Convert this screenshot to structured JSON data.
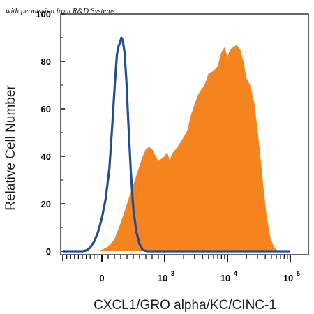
{
  "credit": "with permission from R&D Systems",
  "chart_data": {
    "type": "area",
    "title": "",
    "xlabel": "CXCL1/GRO alpha/KC/CINC-1",
    "ylabel": "Relative Cell Number",
    "x_scale": "biexponential",
    "xlim": [
      -1000,
      100000
    ],
    "ylim": [
      0,
      100
    ],
    "grid": false,
    "legend": "none",
    "y_ticks": [
      "0",
      "20",
      "40",
      "60",
      "80",
      "100"
    ],
    "x_ticks": [
      {
        "label": "0",
        "value": 0
      },
      {
        "label": "10",
        "sup": "3",
        "value": 1000
      },
      {
        "label": "10",
        "sup": "4",
        "value": 10000
      },
      {
        "label": "10",
        "sup": "5",
        "value": 100000
      }
    ],
    "series": [
      {
        "style": "filled",
        "color": "#F5841F",
        "points": [
          [
            -1000,
            0
          ],
          [
            -300,
            0
          ],
          [
            0,
            0.5
          ],
          [
            100,
            2
          ],
          [
            200,
            5
          ],
          [
            300,
            12
          ],
          [
            400,
            20
          ],
          [
            500,
            28
          ],
          [
            600,
            36
          ],
          [
            650,
            40
          ],
          [
            700,
            43
          ],
          [
            750,
            44
          ],
          [
            800,
            43
          ],
          [
            900,
            38
          ],
          [
            1000,
            40
          ],
          [
            1100,
            42
          ],
          [
            1200,
            38
          ],
          [
            1300,
            41
          ],
          [
            1500,
            43
          ],
          [
            1700,
            45
          ],
          [
            2000,
            48
          ],
          [
            2300,
            51
          ],
          [
            2600,
            57
          ],
          [
            3000,
            62
          ],
          [
            3400,
            66
          ],
          [
            3800,
            68
          ],
          [
            4300,
            70
          ],
          [
            5000,
            75
          ],
          [
            6000,
            76
          ],
          [
            7000,
            78
          ],
          [
            8000,
            84
          ],
          [
            9000,
            86
          ],
          [
            10000,
            82
          ],
          [
            11000,
            85
          ],
          [
            12500,
            86
          ],
          [
            14000,
            87
          ],
          [
            16000,
            85
          ],
          [
            18000,
            80
          ],
          [
            20000,
            73
          ],
          [
            23000,
            70
          ],
          [
            27000,
            62
          ],
          [
            32000,
            45
          ],
          [
            37000,
            28
          ],
          [
            42000,
            15
          ],
          [
            48000,
            6
          ],
          [
            55000,
            1.5
          ],
          [
            65000,
            0
          ],
          [
            100000,
            0
          ]
        ]
      },
      {
        "style": "line",
        "color": "#1F4E96",
        "points": [
          [
            -1000,
            0
          ],
          [
            -500,
            0
          ],
          [
            -400,
            0.3
          ],
          [
            -300,
            1.5
          ],
          [
            -200,
            4
          ],
          [
            -100,
            8
          ],
          [
            0,
            14
          ],
          [
            60,
            22
          ],
          [
            120,
            35
          ],
          [
            170,
            55
          ],
          [
            210,
            72
          ],
          [
            240,
            83
          ],
          [
            260,
            86
          ],
          [
            290,
            88
          ],
          [
            310,
            90
          ],
          [
            330,
            89
          ],
          [
            360,
            84
          ],
          [
            390,
            72
          ],
          [
            420,
            55
          ],
          [
            460,
            34
          ],
          [
            500,
            18
          ],
          [
            550,
            8
          ],
          [
            600,
            3
          ],
          [
            650,
            0.5
          ],
          [
            720,
            0
          ],
          [
            100000,
            0
          ]
        ]
      }
    ]
  }
}
